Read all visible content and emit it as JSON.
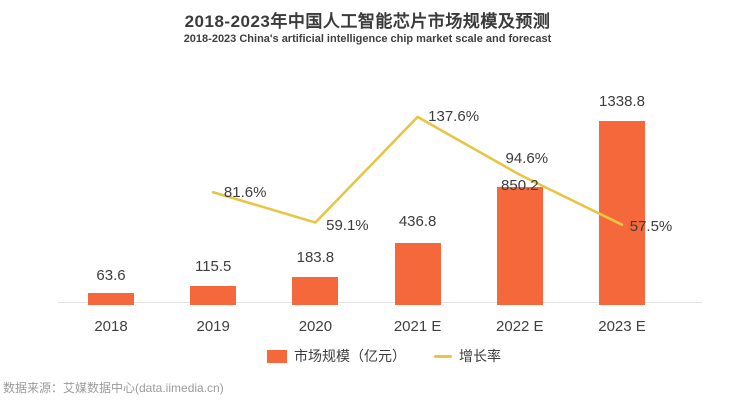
{
  "header": {
    "title": "2018-2023年中国人工智能芯片市场规模及预测",
    "subtitle": "2018-2023 China's artificial intelligence chip market scale and forecast"
  },
  "colors": {
    "bar": "#F4683C",
    "line": "#E7C545",
    "axis": "#e3e3e3",
    "text": "#3d3d3d",
    "source_text": "#9b9b9b"
  },
  "legend": {
    "items": [
      {
        "label": "市场规模（亿元）",
        "type": "bar"
      },
      {
        "label": "增长率",
        "type": "line"
      }
    ],
    "position": "bottom"
  },
  "source": "数据来源：艾媒数据中心(data.iimedia.cn)",
  "chart_data": {
    "type": "bar+line",
    "title": "2018-2023年中国人工智能芯片市场规模及预测",
    "subtitle": "2018-2023 China's artificial intelligence chip market scale and forecast",
    "categories": [
      "2018",
      "2019",
      "2020",
      "2021 E",
      "2022 E",
      "2023 E"
    ],
    "series": [
      {
        "name": "市场规模（亿元）",
        "type": "bar",
        "values": [
          63.6,
          115.5,
          183.8,
          436.8,
          850.2,
          1338.8
        ],
        "labels": [
          "63.6",
          "115.5",
          "183.8",
          "436.8",
          "850.2",
          "1338.8"
        ]
      },
      {
        "name": "增长率",
        "type": "line",
        "unit": "%",
        "values": [
          null,
          81.6,
          59.1,
          137.6,
          94.6,
          57.5
        ],
        "labels": [
          null,
          "81.6%",
          "59.1%",
          "137.6%",
          "94.6%",
          "57.5%"
        ]
      }
    ],
    "grid": false,
    "axes_visible": false,
    "legend_position": "bottom",
    "implied_left_ylim": [
      0,
      1400
    ],
    "implied_right_ylim_pct": [
      0,
      150
    ]
  }
}
